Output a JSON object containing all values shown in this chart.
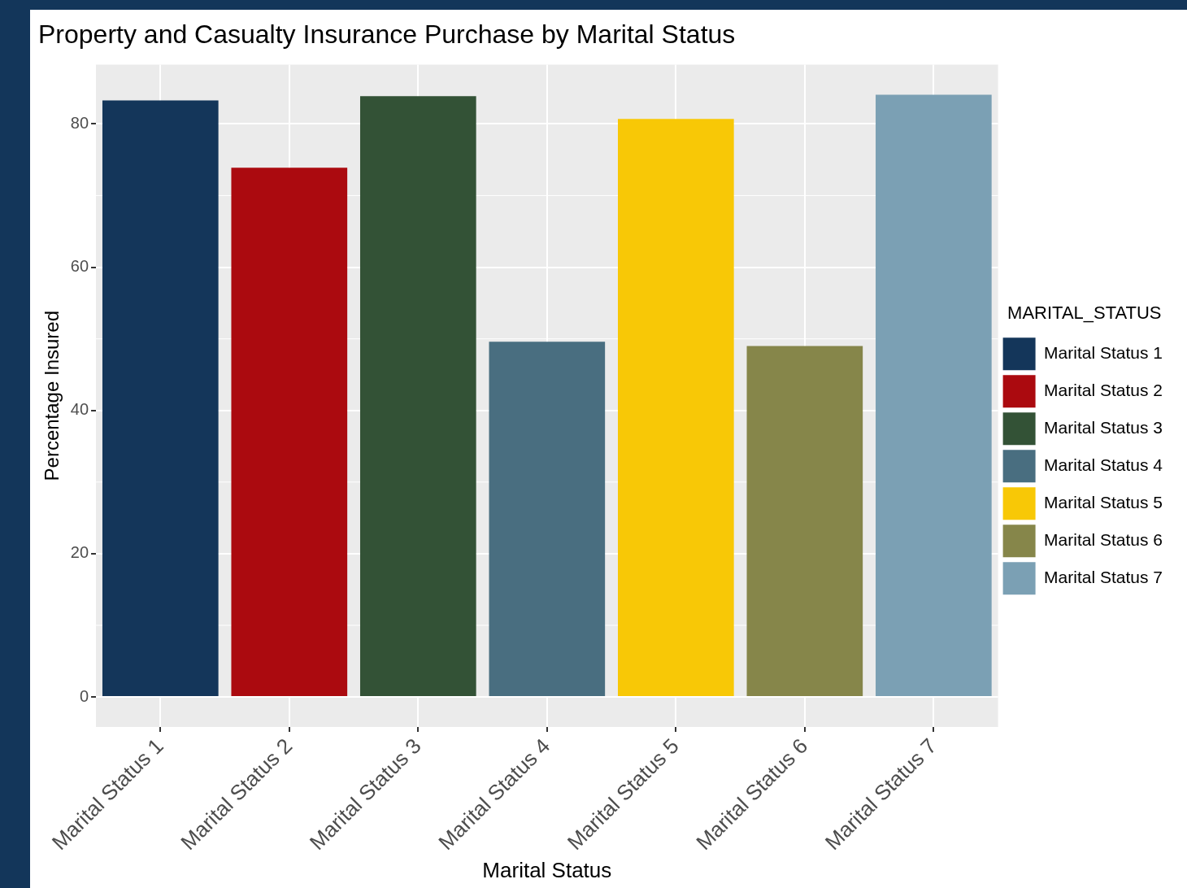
{
  "chart_data": {
    "type": "bar",
    "title": "Property and Casualty Insurance Purchase by Marital Status",
    "xlabel": "Marital Status",
    "ylabel": "Percentage Insured",
    "legend_title": "MARITAL_STATUS",
    "categories": [
      "Marital Status 1",
      "Marital Status 2",
      "Marital Status 3",
      "Marital Status 4",
      "Marital Status 5",
      "Marital Status 6",
      "Marital Status 7"
    ],
    "series": [
      {
        "name": "Marital Status 1",
        "color": "#14365a",
        "values": [
          83.3,
          null,
          null,
          null,
          null,
          null,
          null
        ]
      },
      {
        "name": "Marital Status 2",
        "color": "#ab0a0f",
        "values": [
          null,
          73.9,
          null,
          null,
          null,
          null,
          null
        ]
      },
      {
        "name": "Marital Status 3",
        "color": "#335236",
        "values": [
          null,
          null,
          83.9,
          null,
          null,
          null,
          null
        ]
      },
      {
        "name": "Marital Status 4",
        "color": "#496e80",
        "values": [
          null,
          null,
          null,
          49.6,
          null,
          null,
          null
        ]
      },
      {
        "name": "Marital Status 5",
        "color": "#f8c806",
        "values": [
          null,
          null,
          null,
          null,
          80.7,
          null,
          null
        ]
      },
      {
        "name": "Marital Status 6",
        "color": "#86864a",
        "values": [
          null,
          null,
          null,
          null,
          null,
          49.0,
          null
        ]
      },
      {
        "name": "Marital Status 7",
        "color": "#7ba0b4",
        "values": [
          null,
          null,
          null,
          null,
          null,
          null,
          84.1
        ]
      }
    ],
    "ylim": [
      -4.2,
      88.3
    ],
    "yticks": [
      0,
      20,
      40,
      60,
      80
    ],
    "grid": true,
    "legend": "right"
  }
}
